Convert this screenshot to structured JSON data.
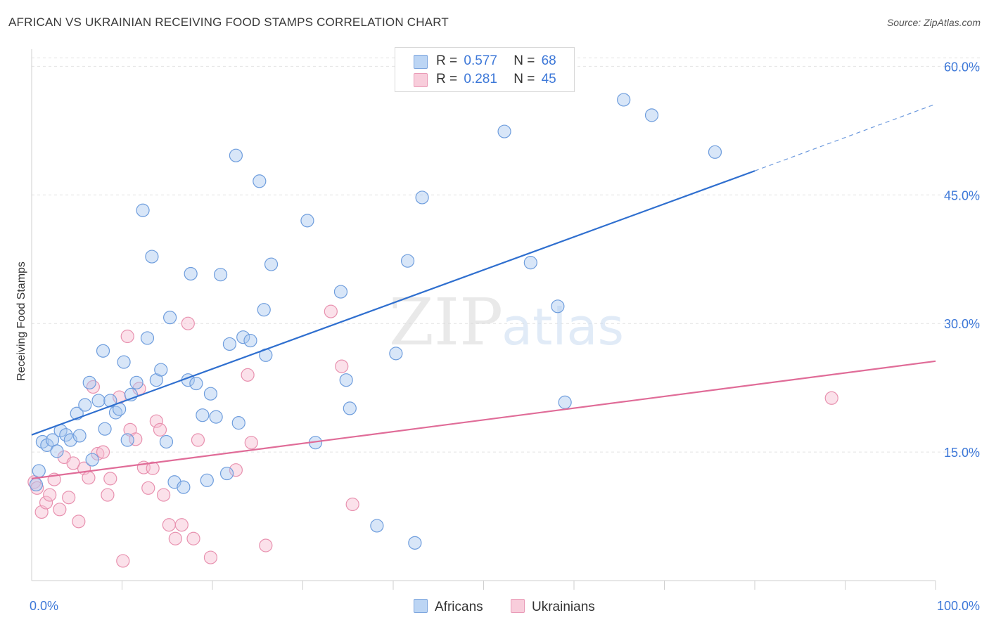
{
  "title": "AFRICAN VS UKRAINIAN RECEIVING FOOD STAMPS CORRELATION CHART",
  "source": "Source: ZipAtlas.com",
  "watermark": {
    "zip": "ZIP",
    "atlas": "atlas"
  },
  "colors": {
    "africans_fill": "#a9c8f0",
    "africans_stroke": "#6e9ddd",
    "africans_line": "#2f6fcf",
    "ukrainians_fill": "#f6bdd0",
    "ukrainians_stroke": "#e891af",
    "ukrainians_line": "#e06c98",
    "tick_label": "#3d78d8",
    "grid": "#e4e4e4"
  },
  "legend": {
    "rows": [
      {
        "r_label": "R =",
        "r_value": "0.577",
        "n_label": "N =",
        "n_value": "68"
      },
      {
        "r_label": "R =",
        "r_value": "0.281",
        "n_label": "N =",
        "n_value": "45"
      }
    ]
  },
  "chart_data": {
    "type": "scatter",
    "title": "AFRICAN VS UKRAINIAN RECEIVING FOOD STAMPS CORRELATION CHART",
    "xlabel": "",
    "ylabel": "Receiving Food Stamps",
    "xlim": [
      0,
      100
    ],
    "ylim": [
      0,
      62
    ],
    "x_tick_labels": [
      "0.0%",
      "100.0%"
    ],
    "y_ticks": [
      15,
      30,
      45,
      60
    ],
    "y_tick_labels": [
      "15.0%",
      "30.0%",
      "45.0%",
      "60.0%"
    ],
    "grid": true,
    "legend_position": "top-center",
    "series": [
      {
        "name": "Africans",
        "points": [
          [
            0.8,
            12.8
          ],
          [
            1.2,
            16.2
          ],
          [
            1.7,
            15.8
          ],
          [
            2.3,
            16.4
          ],
          [
            2.8,
            15.1
          ],
          [
            3.2,
            17.5
          ],
          [
            3.8,
            17.0
          ],
          [
            4.3,
            16.4
          ],
          [
            5.0,
            19.5
          ],
          [
            5.3,
            16.9
          ],
          [
            5.9,
            20.5
          ],
          [
            6.4,
            23.1
          ],
          [
            6.7,
            14.1
          ],
          [
            7.4,
            21.0
          ],
          [
            7.9,
            26.8
          ],
          [
            8.1,
            17.7
          ],
          [
            8.7,
            21.0
          ],
          [
            9.3,
            19.6
          ],
          [
            9.7,
            20.0
          ],
          [
            10.2,
            25.5
          ],
          [
            10.6,
            16.4
          ],
          [
            11.0,
            21.7
          ],
          [
            11.6,
            23.1
          ],
          [
            12.3,
            43.2
          ],
          [
            12.8,
            28.3
          ],
          [
            13.3,
            37.8
          ],
          [
            13.8,
            23.4
          ],
          [
            14.3,
            24.6
          ],
          [
            14.9,
            16.2
          ],
          [
            15.3,
            30.7
          ],
          [
            15.8,
            11.5
          ],
          [
            16.8,
            10.9
          ],
          [
            17.3,
            23.4
          ],
          [
            17.6,
            35.8
          ],
          [
            18.2,
            23.0
          ],
          [
            18.9,
            19.3
          ],
          [
            19.4,
            11.7
          ],
          [
            19.8,
            21.8
          ],
          [
            20.4,
            19.1
          ],
          [
            20.9,
            35.7
          ],
          [
            21.6,
            12.5
          ],
          [
            21.9,
            27.6
          ],
          [
            22.6,
            49.6
          ],
          [
            22.9,
            18.4
          ],
          [
            23.4,
            28.4
          ],
          [
            24.2,
            28.0
          ],
          [
            25.2,
            46.6
          ],
          [
            25.7,
            31.6
          ],
          [
            25.9,
            26.3
          ],
          [
            26.5,
            36.9
          ],
          [
            30.5,
            42.0
          ],
          [
            31.4,
            16.1
          ],
          [
            34.2,
            33.7
          ],
          [
            34.8,
            23.4
          ],
          [
            35.2,
            20.1
          ],
          [
            38.2,
            6.4
          ],
          [
            40.3,
            26.5
          ],
          [
            41.6,
            37.3
          ],
          [
            42.4,
            4.4
          ],
          [
            43.2,
            44.7
          ],
          [
            52.3,
            52.4
          ],
          [
            55.2,
            37.1
          ],
          [
            58.2,
            32.0
          ],
          [
            59.0,
            20.8
          ],
          [
            65.5,
            56.1
          ],
          [
            68.6,
            54.3
          ],
          [
            75.6,
            50.0
          ],
          [
            0.5,
            11.2
          ]
        ],
        "trend": {
          "x0": 0,
          "y0": 17.0,
          "x1": 80,
          "y1": 47.8,
          "dash_to_x": 100,
          "dash_to_y": 55.6
        }
      },
      {
        "name": "Ukrainians",
        "points": [
          [
            0.3,
            11.5
          ],
          [
            0.6,
            10.8
          ],
          [
            1.1,
            8.0
          ],
          [
            1.6,
            9.1
          ],
          [
            2.0,
            10.0
          ],
          [
            2.5,
            11.8
          ],
          [
            3.1,
            8.3
          ],
          [
            3.6,
            14.4
          ],
          [
            4.1,
            9.7
          ],
          [
            4.6,
            13.7
          ],
          [
            5.2,
            6.9
          ],
          [
            5.8,
            13.1
          ],
          [
            6.3,
            12.0
          ],
          [
            6.8,
            22.6
          ],
          [
            7.3,
            14.8
          ],
          [
            7.9,
            15.0
          ],
          [
            8.4,
            10.0
          ],
          [
            8.7,
            11.9
          ],
          [
            9.7,
            21.4
          ],
          [
            10.1,
            2.3
          ],
          [
            10.6,
            28.5
          ],
          [
            10.9,
            17.6
          ],
          [
            11.5,
            16.5
          ],
          [
            11.9,
            22.4
          ],
          [
            12.4,
            13.2
          ],
          [
            12.9,
            10.8
          ],
          [
            13.4,
            13.1
          ],
          [
            13.8,
            18.6
          ],
          [
            14.2,
            17.6
          ],
          [
            14.6,
            10.0
          ],
          [
            15.2,
            6.5
          ],
          [
            15.9,
            4.9
          ],
          [
            16.6,
            6.5
          ],
          [
            17.3,
            30.0
          ],
          [
            17.9,
            4.9
          ],
          [
            18.4,
            16.4
          ],
          [
            19.8,
            2.7
          ],
          [
            22.6,
            12.9
          ],
          [
            23.9,
            24.0
          ],
          [
            24.3,
            16.1
          ],
          [
            25.9,
            4.1
          ],
          [
            33.1,
            31.4
          ],
          [
            34.3,
            25.0
          ],
          [
            35.5,
            8.9
          ],
          [
            88.5,
            21.3
          ]
        ],
        "trend": {
          "x0": 0,
          "y0": 11.9,
          "x1": 100,
          "y1": 25.6
        }
      }
    ]
  },
  "bottom_legend": [
    "Africans",
    "Ukrainians"
  ]
}
